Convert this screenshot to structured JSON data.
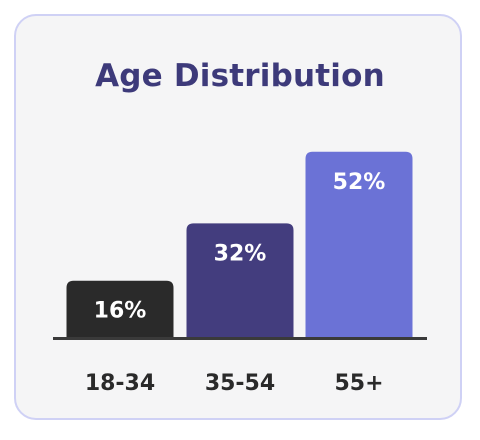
{
  "chart_data": {
    "type": "bar",
    "title": "Age Distribution",
    "categories": [
      "18-34",
      "35-54",
      "55+"
    ],
    "values": [
      16,
      32,
      52
    ],
    "value_labels": [
      "16%",
      "32%",
      "52%"
    ],
    "unit": "%",
    "ylim": [
      0,
      62
    ],
    "grid": false,
    "legend": "none",
    "colors": [
      "#2a2a2a",
      "#433d7e",
      "#6b72d6"
    ]
  },
  "theme": {
    "card_border": "#cfd1f5",
    "card_background": "#f5f5f6",
    "title_color": "#3d3a7a",
    "axis_color": "#3a3a3a"
  }
}
